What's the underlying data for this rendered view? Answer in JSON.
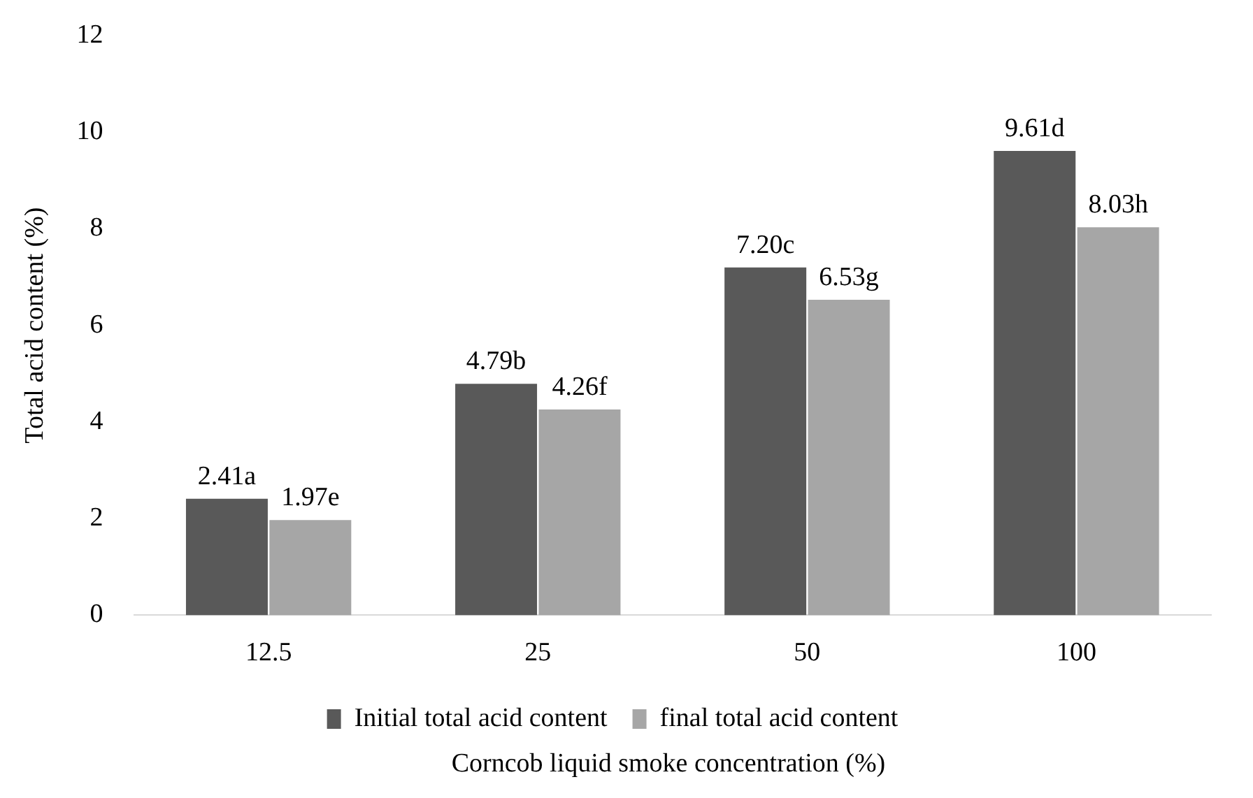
{
  "chart_data": {
    "type": "bar",
    "xlabel": "Corncob liquid smoke concentration (%)",
    "ylabel": "Total acid content (%)",
    "categories": [
      "12.5",
      "25",
      "50",
      "100"
    ],
    "series": [
      {
        "name": "Initial total acid content",
        "color": "#595959",
        "values": [
          2.41,
          4.79,
          7.2,
          9.61
        ],
        "value_labels": [
          "2.41a",
          "4.79b",
          "7.20c",
          "9.61d"
        ]
      },
      {
        "name": "final total acid content",
        "color": "#a6a6a6",
        "values": [
          1.97,
          4.26,
          6.53,
          8.03
        ],
        "value_labels": [
          "1.97e",
          "4.26f",
          "6.53g",
          "8.03h"
        ]
      }
    ],
    "ylim": [
      0,
      12
    ],
    "yticks": [
      0,
      2,
      4,
      6,
      8,
      10,
      12
    ],
    "grid": false,
    "legend": "bottom"
  }
}
